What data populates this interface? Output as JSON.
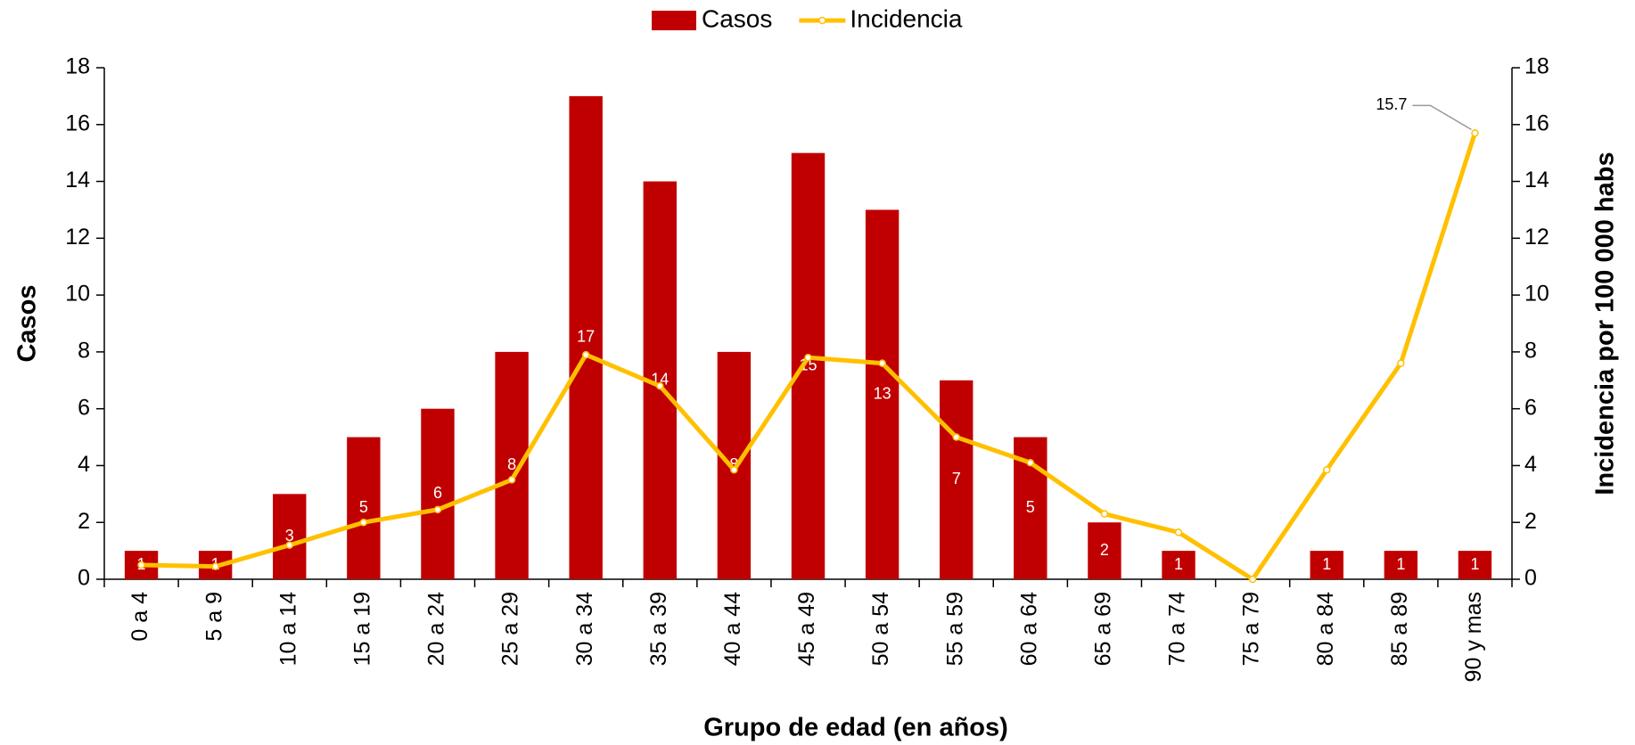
{
  "chart_data": {
    "type": "bar-line",
    "x_label": "Grupo de edad (en años)",
    "y_label": "Casos",
    "y2_label": "Incidencia por 100 000 habs",
    "categories": [
      "0 a 4",
      "5 a 9",
      "10 a 14",
      "15 a 19",
      "20 a 24",
      "25 a 29",
      "30 a 34",
      "35 a 39",
      "40 a 44",
      "45 a 49",
      "50 a 54",
      "55 a 59",
      "60 a 64",
      "65 a 69",
      "70 a 74",
      "75 a 79",
      "80 a 84",
      "85 a 89",
      "90 y mas"
    ],
    "series": [
      {
        "name": "Casos",
        "type": "bar",
        "color": "#c00000",
        "values": [
          1,
          1,
          3,
          5,
          6,
          8,
          17,
          14,
          8,
          15,
          13,
          7,
          5,
          2,
          1,
          0,
          1,
          1,
          1
        ]
      },
      {
        "name": "Incidencia",
        "type": "line",
        "axis": "y2",
        "color": "#ffc000",
        "values": [
          0.5,
          0.45,
          1.2,
          2.0,
          2.45,
          3.5,
          7.9,
          6.8,
          3.85,
          7.8,
          7.6,
          5.0,
          4.1,
          2.3,
          1.65,
          0,
          3.85,
          7.6,
          15.7
        ],
        "value_labels": [
          null,
          null,
          null,
          null,
          null,
          null,
          null,
          null,
          null,
          null,
          null,
          null,
          null,
          null,
          null,
          null,
          null,
          null,
          "15.7"
        ]
      }
    ],
    "ylim": [
      0,
      18
    ],
    "yticks": [
      0,
      2,
      4,
      6,
      8,
      10,
      12,
      14,
      16,
      18
    ],
    "y2lim": [
      0,
      18
    ],
    "y2ticks": [
      0,
      2,
      4,
      6,
      8,
      10,
      12,
      14,
      16,
      18
    ],
    "grid": false,
    "legend": "top"
  }
}
